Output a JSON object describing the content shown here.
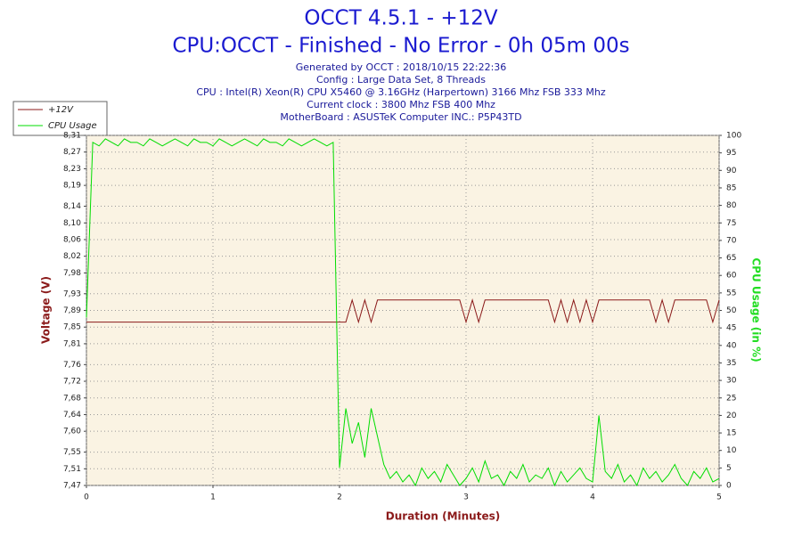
{
  "chart_data": {
    "type": "line",
    "title": "OCCT 4.5.1 - +12V",
    "subtitle": "CPU:OCCT - Finished - No Error - 0h 05m 00s",
    "info": [
      "Generated by OCCT : 2018/10/15 22:22:36",
      "Config : Large Data Set, 8 Threads",
      "CPU : Intel(R) Xeon(R) CPU X5460 @ 3.16GHz (Harpertown) 3166 Mhz FSB 333 Mhz",
      "Current clock : 3800 Mhz FSB 400 Mhz",
      "MotherBoard : ASUSTeK Computer INC.: P5P43TD"
    ],
    "xlabel": "Duration (Minutes)",
    "ylabel": "Voltage (V)",
    "y2label": "CPU Usage (in %)",
    "xlim": [
      0,
      5
    ],
    "xticks": [
      0,
      1,
      2,
      3,
      4,
      5
    ],
    "ylim": [
      7.47,
      8.31
    ],
    "yticks": [
      {
        "value": 7.47,
        "label": "7,47"
      },
      {
        "value": 7.51,
        "label": "7,51"
      },
      {
        "value": 7.55,
        "label": "7,55"
      },
      {
        "value": 7.6,
        "label": "7,60"
      },
      {
        "value": 7.64,
        "label": "7,64"
      },
      {
        "value": 7.68,
        "label": "7,68"
      },
      {
        "value": 7.72,
        "label": "7,72"
      },
      {
        "value": 7.76,
        "label": "7,76"
      },
      {
        "value": 7.81,
        "label": "7,81"
      },
      {
        "value": 7.85,
        "label": "7,85"
      },
      {
        "value": 7.89,
        "label": "7,89"
      },
      {
        "value": 7.93,
        "label": "7,93"
      },
      {
        "value": 7.98,
        "label": "7,98"
      },
      {
        "value": 8.02,
        "label": "8,02"
      },
      {
        "value": 8.06,
        "label": "8,06"
      },
      {
        "value": 8.1,
        "label": "8,10"
      },
      {
        "value": 8.14,
        "label": "8,14"
      },
      {
        "value": 8.19,
        "label": "8,19"
      },
      {
        "value": 8.23,
        "label": "8,23"
      },
      {
        "value": 8.27,
        "label": "8,27"
      },
      {
        "value": 8.31,
        "label": "8,31"
      }
    ],
    "y2lim": [
      0,
      100
    ],
    "y2ticks": [
      0,
      5,
      10,
      15,
      20,
      25,
      30,
      35,
      40,
      45,
      50,
      55,
      60,
      65,
      70,
      75,
      80,
      85,
      90,
      95,
      100
    ],
    "grid": true,
    "legend": "top-left",
    "x": [
      0,
      0.05,
      0.1,
      0.15,
      0.2,
      0.25,
      0.3,
      0.35,
      0.4,
      0.45,
      0.5,
      0.55,
      0.6,
      0.65,
      0.7,
      0.75,
      0.8,
      0.85,
      0.9,
      0.95,
      1,
      1.05,
      1.1,
      1.15,
      1.2,
      1.25,
      1.3,
      1.35,
      1.4,
      1.45,
      1.5,
      1.55,
      1.6,
      1.65,
      1.7,
      1.75,
      1.8,
      1.85,
      1.9,
      1.95,
      2,
      2.05,
      2.1,
      2.15,
      2.2,
      2.25,
      2.3,
      2.35,
      2.4,
      2.45,
      2.5,
      2.55,
      2.6,
      2.65,
      2.7,
      2.75,
      2.8,
      2.85,
      2.9,
      2.95,
      3,
      3.05,
      3.1,
      3.15,
      3.2,
      3.25,
      3.3,
      3.35,
      3.4,
      3.45,
      3.5,
      3.55,
      3.6,
      3.65,
      3.7,
      3.75,
      3.8,
      3.85,
      3.9,
      3.95,
      4,
      4.05,
      4.1,
      4.15,
      4.2,
      4.25,
      4.3,
      4.35,
      4.4,
      4.45,
      4.5,
      4.55,
      4.6,
      4.65,
      4.7,
      4.75,
      4.8,
      4.85,
      4.9,
      4.95,
      5
    ],
    "series": [
      {
        "name": "+12V",
        "color": "#8b1a1a",
        "values": [
          7.862,
          7.862,
          7.862,
          7.862,
          7.862,
          7.862,
          7.862,
          7.862,
          7.862,
          7.862,
          7.862,
          7.862,
          7.862,
          7.862,
          7.862,
          7.862,
          7.862,
          7.862,
          7.862,
          7.862,
          7.862,
          7.862,
          7.862,
          7.862,
          7.862,
          7.862,
          7.862,
          7.862,
          7.862,
          7.862,
          7.862,
          7.862,
          7.862,
          7.862,
          7.862,
          7.862,
          7.862,
          7.862,
          7.862,
          7.862,
          7.862,
          7.862,
          7.915,
          7.862,
          7.915,
          7.862,
          7.915,
          7.915,
          7.915,
          7.915,
          7.915,
          7.915,
          7.915,
          7.915,
          7.915,
          7.915,
          7.915,
          7.915,
          7.915,
          7.915,
          7.862,
          7.915,
          7.862,
          7.915,
          7.915,
          7.915,
          7.915,
          7.915,
          7.915,
          7.915,
          7.915,
          7.915,
          7.915,
          7.915,
          7.862,
          7.915,
          7.862,
          7.915,
          7.862,
          7.915,
          7.862,
          7.915,
          7.915,
          7.915,
          7.915,
          7.915,
          7.915,
          7.915,
          7.915,
          7.915,
          7.862,
          7.915,
          7.862,
          7.915,
          7.915,
          7.915,
          7.915,
          7.915,
          7.915,
          7.862,
          7.915
        ]
      },
      {
        "name": "CPU Usage",
        "color": "#00dd00",
        "axis": "y2",
        "values": [
          48,
          98,
          97,
          99,
          98,
          97,
          99,
          98,
          98,
          97,
          99,
          98,
          97,
          98,
          99,
          98,
          97,
          99,
          98,
          98,
          97,
          99,
          98,
          97,
          98,
          99,
          98,
          97,
          99,
          98,
          98,
          97,
          99,
          98,
          97,
          98,
          99,
          98,
          97,
          98,
          5,
          22,
          12,
          18,
          8,
          22,
          14,
          6,
          2,
          4,
          1,
          3,
          0,
          5,
          2,
          4,
          1,
          6,
          3,
          0,
          2,
          5,
          1,
          7,
          2,
          3,
          0,
          4,
          2,
          6,
          1,
          3,
          2,
          5,
          0,
          4,
          1,
          3,
          5,
          2,
          1,
          20,
          4,
          2,
          6,
          1,
          3,
          0,
          5,
          2,
          4,
          1,
          3,
          6,
          2,
          0,
          4,
          2,
          5,
          1,
          2
        ]
      }
    ]
  }
}
